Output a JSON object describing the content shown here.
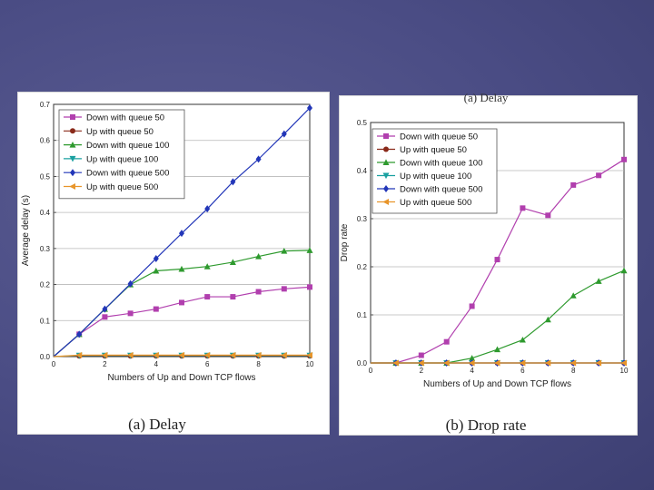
{
  "chart_data": [
    {
      "type": "line",
      "caption": "(a) Delay",
      "xlabel": "Numbers of Up and Down TCP flows",
      "ylabel": "Average delay (s)",
      "xlim": [
        0,
        10
      ],
      "ylim": [
        0,
        0.7
      ],
      "xticks": [
        0,
        2,
        4,
        6,
        8,
        10
      ],
      "yticks": [
        0.0,
        0.1,
        0.2,
        0.3,
        0.4,
        0.5,
        0.6,
        0.7
      ],
      "ytick_labels": [
        "0.0",
        "0.1",
        "0.2",
        "0.3",
        "0.4",
        "0.5",
        "0.6",
        "0.7"
      ],
      "grid": "horizontal",
      "legend_position": "top-left",
      "x": [
        0,
        1,
        2,
        3,
        4,
        5,
        6,
        7,
        8,
        9,
        10
      ],
      "series": [
        {
          "name": "Down with queue 50",
          "color": "#b13fae",
          "marker": "square",
          "values": [
            0,
            0.062,
            0.11,
            0.12,
            0.132,
            0.15,
            0.166,
            0.166,
            0.18,
            0.188,
            0.193
          ]
        },
        {
          "name": "Up with queue 50",
          "color": "#8a2a1a",
          "marker": "circle",
          "values": [
            0,
            0.002,
            0.002,
            0.002,
            0.002,
            0.002,
            0.002,
            0.002,
            0.002,
            0.002,
            0.002
          ]
        },
        {
          "name": "Down with queue 100",
          "color": "#2e9a2e",
          "marker": "triangle-up",
          "values": [
            0,
            0.062,
            0.132,
            0.2,
            0.238,
            0.243,
            0.25,
            0.262,
            0.278,
            0.293,
            0.295
          ]
        },
        {
          "name": "Up with queue 100",
          "color": "#1aa0a0",
          "marker": "triangle-down",
          "values": [
            0,
            0.003,
            0.003,
            0.003,
            0.003,
            0.003,
            0.003,
            0.003,
            0.003,
            0.003,
            0.003
          ]
        },
        {
          "name": "Down with queue 500",
          "color": "#2236b8",
          "marker": "diamond",
          "values": [
            0,
            0.062,
            0.132,
            0.202,
            0.272,
            0.342,
            0.41,
            0.485,
            0.548,
            0.618,
            0.69
          ]
        },
        {
          "name": "Up with queue 500",
          "color": "#e8952a",
          "marker": "triangle-left",
          "values": [
            0,
            0.004,
            0.004,
            0.004,
            0.004,
            0.004,
            0.004,
            0.004,
            0.004,
            0.004,
            0.004
          ]
        }
      ]
    },
    {
      "type": "line",
      "caption": "(b) Drop rate",
      "top_caption": "(a) Delay",
      "xlabel": "Numbers of Up and Down TCP flows",
      "ylabel": "Drop rate",
      "xlim": [
        0,
        10
      ],
      "ylim": [
        0,
        0.5
      ],
      "xticks": [
        0,
        2,
        4,
        6,
        8,
        10
      ],
      "yticks": [
        0.0,
        0.1,
        0.2,
        0.3,
        0.4,
        0.5
      ],
      "ytick_labels": [
        "0.0",
        "0.1",
        "0.2",
        "0.3",
        "0.4",
        "0.5"
      ],
      "grid": "horizontal",
      "legend_position": "top-left",
      "x": [
        0,
        1,
        2,
        3,
        4,
        5,
        6,
        7,
        8,
        9,
        10
      ],
      "series": [
        {
          "name": "Down with queue 50",
          "color": "#b13fae",
          "marker": "square",
          "values": [
            0,
            0,
            0.016,
            0.044,
            0.118,
            0.215,
            0.322,
            0.307,
            0.37,
            0.39,
            0.423
          ]
        },
        {
          "name": "Up with queue 50",
          "color": "#8a2a1a",
          "marker": "circle",
          "values": [
            0,
            0,
            0,
            0,
            0,
            0,
            0,
            0,
            0,
            0,
            0
          ]
        },
        {
          "name": "Down with queue 100",
          "color": "#2e9a2e",
          "marker": "triangle-up",
          "values": [
            0,
            0,
            0,
            0,
            0.01,
            0.028,
            0.048,
            0.09,
            0.14,
            0.17,
            0.192
          ]
        },
        {
          "name": "Up with queue 100",
          "color": "#1aa0a0",
          "marker": "triangle-down",
          "values": [
            0,
            0,
            0,
            0,
            0,
            0,
            0,
            0,
            0,
            0,
            0
          ]
        },
        {
          "name": "Down with queue 500",
          "color": "#2236b8",
          "marker": "diamond",
          "values": [
            0,
            0,
            0,
            0,
            0,
            0,
            0,
            0,
            0,
            0,
            0
          ]
        },
        {
          "name": "Up with queue 500",
          "color": "#e8952a",
          "marker": "triangle-left",
          "values": [
            0,
            0,
            0,
            0,
            0,
            0,
            0,
            0,
            0,
            0,
            0
          ]
        }
      ]
    }
  ]
}
